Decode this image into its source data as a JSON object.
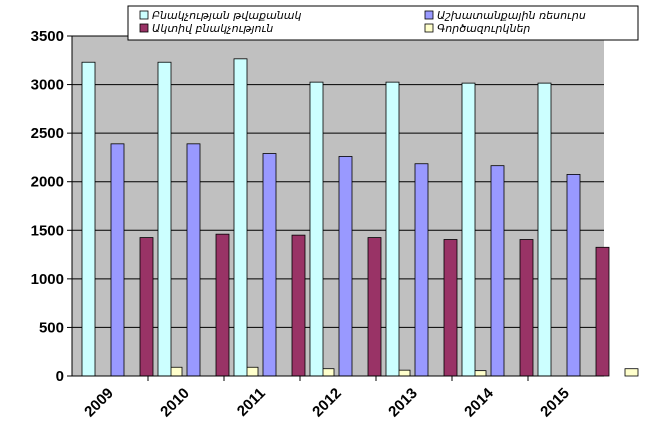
{
  "chart_data": {
    "type": "bar",
    "categories": [
      "2009",
      "2010",
      "2011",
      "2012",
      "2013",
      "2014",
      "2015"
    ],
    "ylim": [
      0,
      3500
    ],
    "yticks": [
      0,
      500,
      1000,
      1500,
      2000,
      2500,
      3000,
      3500
    ],
    "grid": true,
    "legend_position": "top",
    "plot_background": "#c0c0c0",
    "series": [
      {
        "name": "Բնակչության թվաքանակ",
        "color": "#ccffff",
        "values": [
          3230,
          3230,
          3265,
          3025,
          3025,
          3015,
          3015
        ]
      },
      {
        "name": "Աշխատանքային ռեսուրս",
        "color": "#9999ff",
        "values": [
          2390,
          2390,
          2290,
          2260,
          2185,
          2165,
          2075
        ]
      },
      {
        "name": "Ակտիվ բնակչություն",
        "color": "#993366",
        "values": [
          1425,
          1460,
          1450,
          1425,
          1405,
          1405,
          1325
        ]
      },
      {
        "name": "Գործազուրկներ",
        "color": "#ffffcc",
        "values": [
          90,
          90,
          75,
          60,
          55,
          0,
          75
        ]
      }
    ]
  }
}
